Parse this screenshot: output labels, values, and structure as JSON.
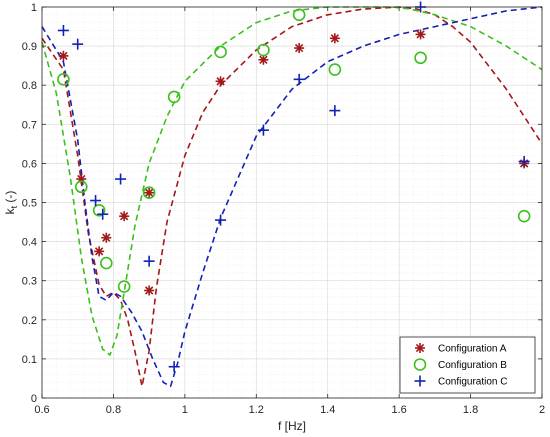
{
  "chart_data": {
    "type": "scatter",
    "xlabel": "f [Hz]",
    "ylabel_main": "k",
    "ylabel_sub": "t",
    "ylabel_unit": "(-)",
    "xlim": [
      0.6,
      2.0
    ],
    "ylim": [
      0,
      1.0
    ],
    "x_ticks": [
      0.6,
      0.8,
      1.0,
      1.2,
      1.4,
      1.6,
      1.8,
      2.0
    ],
    "x_tick_labels": [
      "0.6",
      "0.8",
      "1",
      "1.2",
      "1.4",
      "1.6",
      "1.8",
      "2"
    ],
    "y_ticks": [
      0,
      0.1,
      0.2,
      0.3,
      0.4,
      0.5,
      0.6,
      0.7,
      0.8,
      0.9,
      1.0
    ],
    "y_tick_labels": [
      "0",
      "0.1",
      "0.2",
      "0.3",
      "0.4",
      "0.5",
      "0.6",
      "0.7",
      "0.8",
      "0.9",
      "1"
    ],
    "grid": true,
    "minor_grid": true,
    "legend_position": "bottom-right",
    "series": [
      {
        "name": "Configuration A",
        "marker": "asterisk",
        "color": "#a31818",
        "x": [
          0.66,
          0.71,
          0.76,
          0.78,
          0.83,
          0.9,
          0.9,
          1.1,
          1.22,
          1.32,
          1.42,
          1.66,
          1.95
        ],
        "y": [
          0.875,
          0.56,
          0.375,
          0.41,
          0.465,
          0.275,
          0.525,
          0.81,
          0.865,
          0.895,
          0.92,
          0.93,
          0.6
        ],
        "curve_color": "#a31818",
        "curve": {
          "x": [
            0.6,
            0.66,
            0.7,
            0.73,
            0.76,
            0.78,
            0.8,
            0.82,
            0.84,
            0.86,
            0.88,
            0.9,
            0.92,
            0.95,
            1.0,
            1.05,
            1.1,
            1.2,
            1.3,
            1.4,
            1.5,
            1.6,
            1.65,
            1.7,
            1.75,
            1.8,
            1.9,
            2.0
          ],
          "y": [
            0.92,
            0.84,
            0.62,
            0.42,
            0.29,
            0.26,
            0.27,
            0.25,
            0.2,
            0.12,
            0.03,
            0.12,
            0.28,
            0.45,
            0.62,
            0.73,
            0.8,
            0.89,
            0.95,
            0.98,
            0.995,
            1.0,
            0.995,
            0.98,
            0.95,
            0.91,
            0.79,
            0.65
          ]
        }
      },
      {
        "name": "Configuration B",
        "marker": "circle",
        "color": "#3cc01e",
        "x": [
          0.66,
          0.71,
          0.76,
          0.78,
          0.83,
          0.9,
          0.97,
          1.1,
          1.22,
          1.32,
          1.42,
          1.66,
          1.95
        ],
        "y": [
          0.815,
          0.54,
          0.48,
          0.345,
          0.285,
          0.525,
          0.77,
          0.885,
          0.89,
          0.98,
          0.84,
          0.87,
          0.465
        ],
        "curve_color": "#3cc01e",
        "curve": {
          "x": [
            0.6,
            0.64,
            0.68,
            0.71,
            0.74,
            0.77,
            0.79,
            0.81,
            0.83,
            0.86,
            0.9,
            0.95,
            1.0,
            1.1,
            1.2,
            1.3,
            1.4,
            1.5,
            1.58,
            1.63,
            1.7,
            1.8,
            1.9,
            2.0
          ],
          "y": [
            0.91,
            0.78,
            0.56,
            0.36,
            0.21,
            0.125,
            0.11,
            0.16,
            0.27,
            0.44,
            0.6,
            0.72,
            0.81,
            0.9,
            0.96,
            0.99,
            1.0,
            1.0,
            1.0,
            0.995,
            0.98,
            0.95,
            0.9,
            0.84
          ]
        }
      },
      {
        "name": "Configuration C",
        "marker": "plus",
        "color": "#1222b4",
        "x": [
          0.66,
          0.7,
          0.75,
          0.77,
          0.82,
          0.9,
          0.97,
          1.1,
          1.22,
          1.32,
          1.42,
          1.66,
          1.95
        ],
        "y": [
          0.94,
          0.905,
          0.505,
          0.47,
          0.56,
          0.35,
          0.08,
          0.455,
          0.685,
          0.815,
          0.735,
          1.0,
          0.605
        ],
        "curve_color": "#1222b4",
        "curve": {
          "x": [
            0.6,
            0.66,
            0.7,
            0.72,
            0.74,
            0.76,
            0.78,
            0.8,
            0.82,
            0.85,
            0.88,
            0.91,
            0.94,
            0.96,
            0.98,
            1.0,
            1.05,
            1.1,
            1.2,
            1.3,
            1.4,
            1.5,
            1.6,
            1.7,
            1.8,
            1.9,
            2.0
          ],
          "y": [
            0.95,
            0.86,
            0.66,
            0.5,
            0.36,
            0.26,
            0.25,
            0.27,
            0.26,
            0.22,
            0.17,
            0.1,
            0.04,
            0.03,
            0.09,
            0.17,
            0.32,
            0.46,
            0.67,
            0.79,
            0.86,
            0.9,
            0.93,
            0.95,
            0.97,
            0.99,
            1.0
          ]
        }
      }
    ]
  }
}
